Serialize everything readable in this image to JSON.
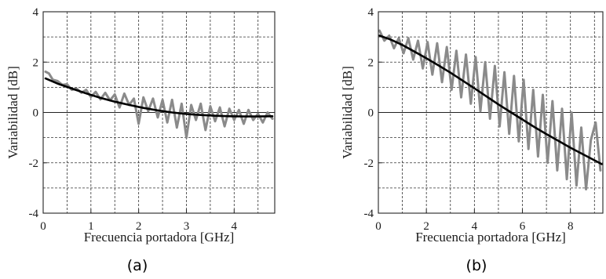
{
  "chart_data": [
    {
      "type": "line",
      "caption": "(a)",
      "xlabel": "Frecuencia portadora [GHz]",
      "ylabel": "Variabilidad [dB]",
      "xlim": [
        0,
        4.85
      ],
      "ylim": [
        -4,
        4
      ],
      "xticks": [
        0,
        1,
        2,
        3,
        4
      ],
      "yticks": [
        -4,
        -2,
        0,
        2,
        4
      ],
      "x_gridlines": [
        0.5,
        1,
        1.5,
        2,
        2.5,
        3,
        3.5,
        4,
        4.5
      ],
      "y_gridlines": [
        -3,
        -2,
        -1,
        0,
        1,
        2,
        3
      ],
      "grid": true,
      "series": [
        {
          "color": "#8a8a8a",
          "x": [
            0.05,
            0.12,
            0.2,
            0.3,
            0.4,
            0.5,
            0.6,
            0.7,
            0.8,
            0.9,
            1.0,
            1.1,
            1.2,
            1.3,
            1.4,
            1.5,
            1.6,
            1.7,
            1.8,
            1.9,
            2.0,
            2.1,
            2.2,
            2.3,
            2.4,
            2.5,
            2.6,
            2.7,
            2.8,
            2.9,
            3.0,
            3.1,
            3.2,
            3.3,
            3.4,
            3.5,
            3.6,
            3.7,
            3.8,
            3.9,
            4.0,
            4.1,
            4.2,
            4.3,
            4.4,
            4.5,
            4.6,
            4.7,
            4.8
          ],
          "values": [
            1.62,
            1.55,
            1.3,
            1.25,
            1.1,
            1.12,
            0.9,
            0.95,
            0.78,
            0.9,
            0.62,
            0.82,
            0.52,
            0.78,
            0.48,
            0.72,
            0.2,
            0.75,
            0.3,
            0.55,
            -0.45,
            0.6,
            0.05,
            0.55,
            -0.2,
            0.5,
            -0.4,
            0.5,
            -0.6,
            0.35,
            -1.0,
            0.3,
            -0.3,
            0.35,
            -0.7,
            0.25,
            -0.35,
            0.2,
            -0.55,
            0.15,
            -0.3,
            0.1,
            -0.45,
            0.1,
            -0.3,
            -0.05,
            -0.4,
            0.0,
            -0.25
          ]
        },
        {
          "color": "#000000",
          "x": [
            0.05,
            0.3,
            0.6,
            0.9,
            1.2,
            1.5,
            1.8,
            2.1,
            2.4,
            2.7,
            3.0,
            3.3,
            3.6,
            3.9,
            4.2,
            4.5,
            4.8
          ],
          "values": [
            1.35,
            1.15,
            0.95,
            0.76,
            0.58,
            0.43,
            0.3,
            0.18,
            0.08,
            0.0,
            -0.06,
            -0.1,
            -0.13,
            -0.15,
            -0.16,
            -0.16,
            -0.15
          ]
        }
      ]
    },
    {
      "type": "line",
      "caption": "(b)",
      "xlabel": "Frecuencia portadora [GHz]",
      "ylabel": "Variabilidad [dB]",
      "xlim": [
        0,
        9.35
      ],
      "ylim": [
        -4,
        4
      ],
      "xticks": [
        0,
        2,
        4,
        6,
        8
      ],
      "yticks": [
        -4,
        -2,
        0,
        2,
        4
      ],
      "x_gridlines": [
        1,
        2,
        3,
        4,
        5,
        6,
        7,
        8,
        9
      ],
      "y_gridlines": [
        -3,
        -2,
        -1,
        0,
        1,
        2,
        3
      ],
      "grid": true,
      "series": [
        {
          "color": "#8a8a8a",
          "x": [
            0.05,
            0.25,
            0.45,
            0.65,
            0.85,
            1.05,
            1.25,
            1.45,
            1.65,
            1.85,
            2.05,
            2.25,
            2.45,
            2.65,
            2.85,
            3.05,
            3.25,
            3.45,
            3.65,
            3.85,
            4.05,
            4.25,
            4.45,
            4.65,
            4.85,
            5.05,
            5.25,
            5.45,
            5.65,
            5.85,
            6.05,
            6.25,
            6.45,
            6.65,
            6.85,
            7.05,
            7.25,
            7.45,
            7.65,
            7.85,
            8.05,
            8.25,
            8.45,
            8.65,
            8.85,
            9.05,
            9.25
          ],
          "values": [
            3.25,
            2.85,
            3.05,
            2.55,
            2.95,
            2.35,
            2.95,
            2.1,
            2.85,
            1.75,
            2.8,
            1.5,
            2.75,
            1.2,
            2.6,
            0.9,
            2.45,
            0.6,
            2.3,
            0.35,
            2.2,
            0.05,
            2.0,
            -0.25,
            1.85,
            -0.55,
            1.6,
            -0.85,
            1.45,
            -1.15,
            1.3,
            -1.45,
            0.9,
            -1.75,
            0.7,
            -2.0,
            0.45,
            -2.3,
            0.15,
            -2.65,
            0.0,
            -2.9,
            -0.6,
            -3.05,
            -1.1,
            -0.4,
            -2.3
          ]
        },
        {
          "color": "#000000",
          "x": [
            0.05,
            0.5,
            1.0,
            1.5,
            2.0,
            2.5,
            3.0,
            3.5,
            4.0,
            4.5,
            5.0,
            5.5,
            6.0,
            6.5,
            7.0,
            7.5,
            8.0,
            8.5,
            9.0,
            9.3
          ],
          "values": [
            3.05,
            2.9,
            2.68,
            2.42,
            2.15,
            1.87,
            1.58,
            1.27,
            0.96,
            0.64,
            0.32,
            0.02,
            -0.28,
            -0.58,
            -0.86,
            -1.13,
            -1.4,
            -1.65,
            -1.9,
            -2.05
          ]
        }
      ]
    }
  ]
}
